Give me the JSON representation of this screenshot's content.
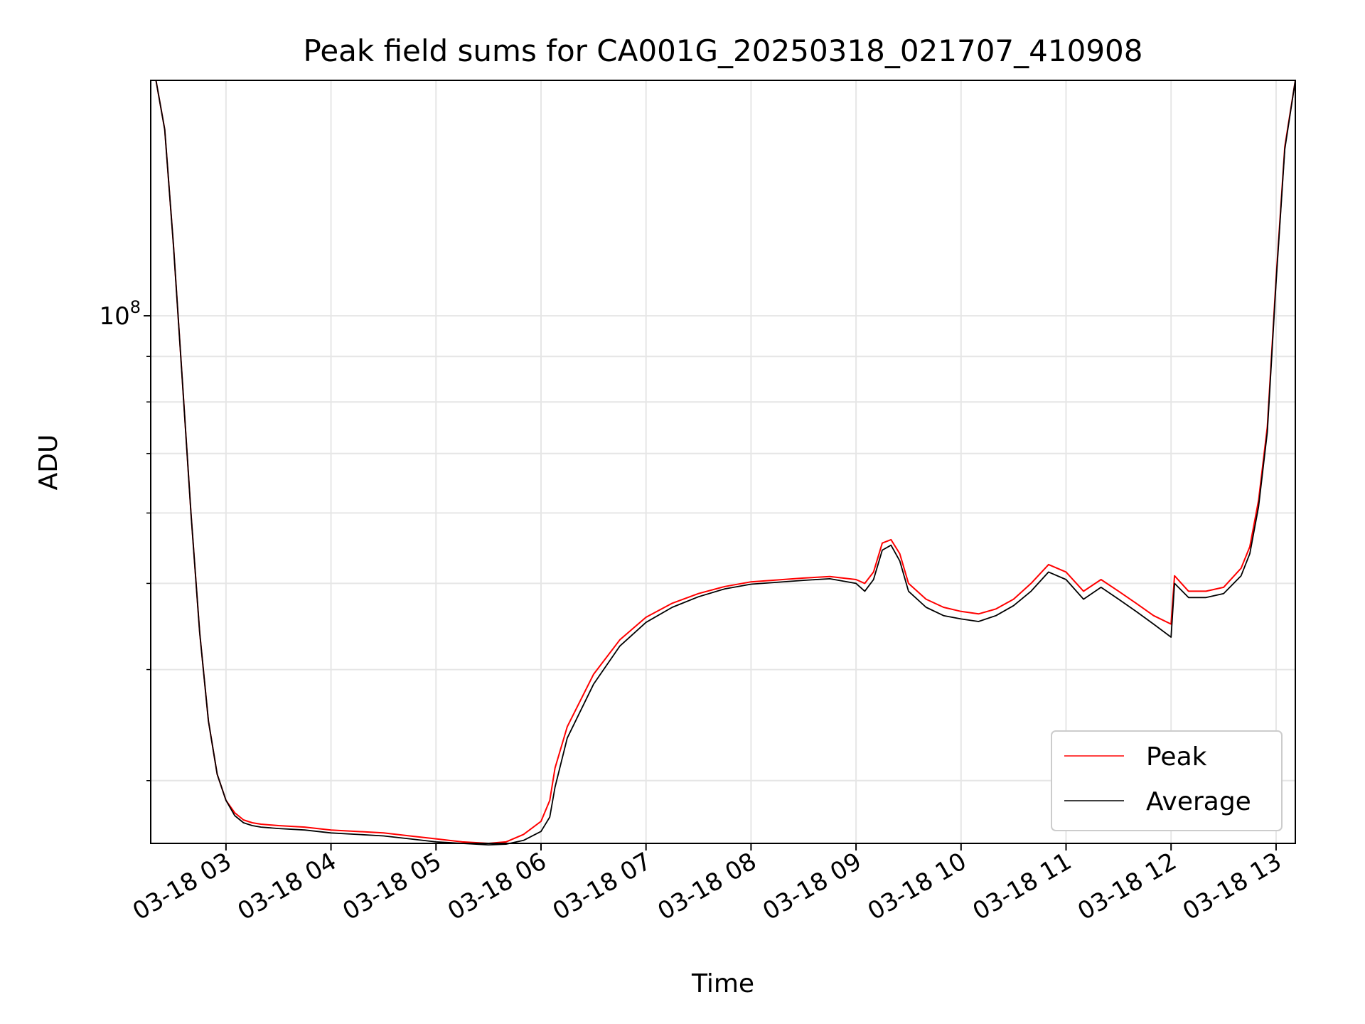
{
  "chart_data": {
    "type": "line",
    "title": "Peak field sums for CA001G_20250318_021707_410908",
    "xlabel": "Time",
    "ylabel": "ADU",
    "y_scale": "log",
    "ylim": [
      25500000,
      184000000
    ],
    "xlim": [
      "03-18 02:17",
      "03-18 13:11"
    ],
    "x_ticks": [
      "03-18 03",
      "03-18 04",
      "03-18 05",
      "03-18 06",
      "03-18 07",
      "03-18 08",
      "03-18 09",
      "03-18 10",
      "03-18 11",
      "03-18 12",
      "03-18 13"
    ],
    "y_tick_major": {
      "value": 100000000,
      "base": "10",
      "exp": "8"
    },
    "y_tick_minor": [
      30000000,
      40000000,
      50000000,
      60000000,
      70000000,
      80000000,
      90000000
    ],
    "grid": true,
    "legend_position": "lower right",
    "x": [
      "03-18 02:17",
      "03-18 02:20",
      "03-18 02:25",
      "03-18 02:30",
      "03-18 02:35",
      "03-18 02:40",
      "03-18 02:45",
      "03-18 02:50",
      "03-18 02:55",
      "03-18 03:00",
      "03-18 03:05",
      "03-18 03:10",
      "03-18 03:15",
      "03-18 03:20",
      "03-18 03:30",
      "03-18 03:45",
      "03-18 04:00",
      "03-18 04:15",
      "03-18 04:30",
      "03-18 04:45",
      "03-18 05:00",
      "03-18 05:15",
      "03-18 05:30",
      "03-18 05:40",
      "03-18 05:50",
      "03-18 06:00",
      "03-18 06:05",
      "03-18 06:08",
      "03-18 06:15",
      "03-18 06:30",
      "03-18 06:45",
      "03-18 07:00",
      "03-18 07:15",
      "03-18 07:30",
      "03-18 07:45",
      "03-18 08:00",
      "03-18 08:30",
      "03-18 08:45",
      "03-18 09:00",
      "03-18 09:05",
      "03-18 09:10",
      "03-18 09:15",
      "03-18 09:20",
      "03-18 09:25",
      "03-18 09:30",
      "03-18 09:40",
      "03-18 09:50",
      "03-18 10:00",
      "03-18 10:10",
      "03-18 10:20",
      "03-18 10:30",
      "03-18 10:40",
      "03-18 10:50",
      "03-18 11:00",
      "03-18 11:10",
      "03-18 11:20",
      "03-18 11:30",
      "03-18 11:40",
      "03-18 11:50",
      "03-18 12:00",
      "03-18 12:02",
      "03-18 12:10",
      "03-18 12:20",
      "03-18 12:30",
      "03-18 12:40",
      "03-18 12:45",
      "03-18 12:50",
      "03-18 12:55",
      "03-18 13:00",
      "03-18 13:05",
      "03-18 13:11"
    ],
    "series": [
      {
        "name": "Peak",
        "color": "#ff0000",
        "values": [
          184000000,
          184000000,
          162000000,
          120000000,
          85000000,
          60000000,
          44000000,
          35000000,
          30500000,
          28500000,
          27600000,
          27100000,
          26900000,
          26800000,
          26700000,
          26600000,
          26400000,
          26300000,
          26200000,
          26000000,
          25800000,
          25600000,
          25500000,
          25600000,
          26100000,
          27000000,
          28500000,
          31000000,
          34500000,
          39500000,
          43200000,
          45800000,
          47500000,
          48700000,
          49600000,
          50200000,
          50700000,
          50900000,
          50500000,
          50000000,
          51500000,
          55500000,
          56000000,
          54000000,
          50000000,
          48000000,
          47000000,
          46500000,
          46200000,
          46800000,
          48000000,
          50000000,
          52500000,
          51500000,
          49000000,
          50500000,
          49000000,
          47500000,
          46000000,
          45000000,
          51000000,
          49000000,
          49000000,
          49500000,
          52000000,
          55000000,
          62000000,
          75000000,
          110000000,
          155000000,
          184000000
        ]
      },
      {
        "name": "Average",
        "color": "#000000",
        "values": [
          184000000,
          184000000,
          162000000,
          120000000,
          85000000,
          60000000,
          44000000,
          35000000,
          30500000,
          28500000,
          27400000,
          26900000,
          26700000,
          26600000,
          26500000,
          26400000,
          26200000,
          26100000,
          26000000,
          25800000,
          25600000,
          25500000,
          25400000,
          25450000,
          25700000,
          26300000,
          27300000,
          29500000,
          33500000,
          38500000,
          42500000,
          45200000,
          47000000,
          48300000,
          49300000,
          49900000,
          50400000,
          50600000,
          50000000,
          49000000,
          50500000,
          54500000,
          55200000,
          53000000,
          49000000,
          47000000,
          46000000,
          45600000,
          45300000,
          46000000,
          47200000,
          49000000,
          51500000,
          50500000,
          48000000,
          49500000,
          48000000,
          46500000,
          45000000,
          43500000,
          50000000,
          48200000,
          48200000,
          48700000,
          51000000,
          54000000,
          61000000,
          74000000,
          109000000,
          154000000,
          184000000
        ]
      }
    ]
  }
}
